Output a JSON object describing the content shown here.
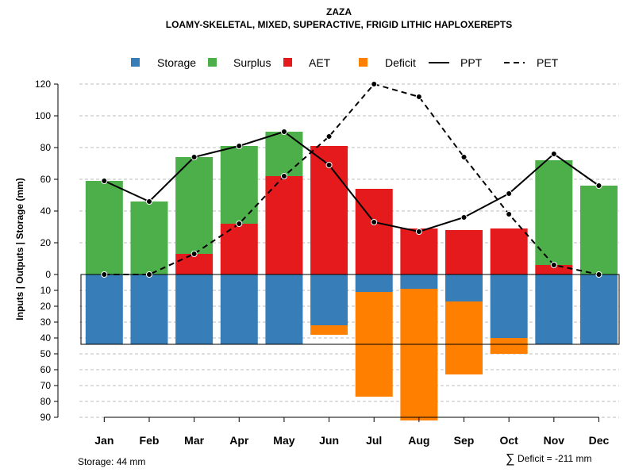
{
  "chart_data": {
    "type": "bar",
    "title": "ZAZA",
    "subtitle": "LOAMY-SKELETAL, MIXED, SUPERACTIVE, FRIGID LITHIC HAPLOXEREPTS",
    "ylabel": "Inputs | Outputs | Storage    (mm)",
    "categories": [
      "Jan",
      "Feb",
      "Mar",
      "Apr",
      "May",
      "Jun",
      "Jul",
      "Aug",
      "Sep",
      "Oct",
      "Nov",
      "Dec"
    ],
    "ylim": [
      -90,
      120
    ],
    "yticks_upper": [
      0,
      20,
      40,
      60,
      80,
      100,
      120
    ],
    "yticks_lower": [
      10,
      20,
      30,
      40,
      50,
      60,
      70,
      80,
      90
    ],
    "colors": {
      "storage": "#377eb8",
      "surplus": "#4daf4a",
      "aet": "#e41a1c",
      "deficit": "#ff7f00",
      "line": "#000000",
      "grid": "#bebebe"
    },
    "legend": {
      "storage": "Storage",
      "surplus": "Surplus",
      "aet": "AET",
      "deficit": "Deficit",
      "ppt": "PPT",
      "pet": "PET"
    },
    "series": {
      "aet": [
        0,
        0,
        13,
        32,
        62,
        81,
        54,
        29,
        28,
        29,
        6,
        0
      ],
      "surplus": [
        59,
        46,
        61,
        49,
        28,
        0,
        0,
        0,
        0,
        0,
        66,
        56
      ],
      "storage": [
        44,
        44,
        44,
        44,
        44,
        32,
        11,
        9,
        17,
        40,
        44,
        44
      ],
      "deficit": [
        0,
        0,
        0,
        0,
        0,
        6,
        66,
        83,
        46,
        10,
        0,
        0
      ],
      "ppt": [
        59,
        46,
        74,
        81,
        90,
        69,
        33,
        27,
        36,
        51,
        76,
        56
      ],
      "pet": [
        0,
        0,
        13,
        32,
        62,
        87,
        120,
        112,
        74,
        38,
        6,
        0
      ]
    },
    "storage_capacity": 44,
    "storage_note": "Storage: 44 mm",
    "deficit_note_symbol": "∑",
    "deficit_note": "Deficit = -211 mm"
  }
}
